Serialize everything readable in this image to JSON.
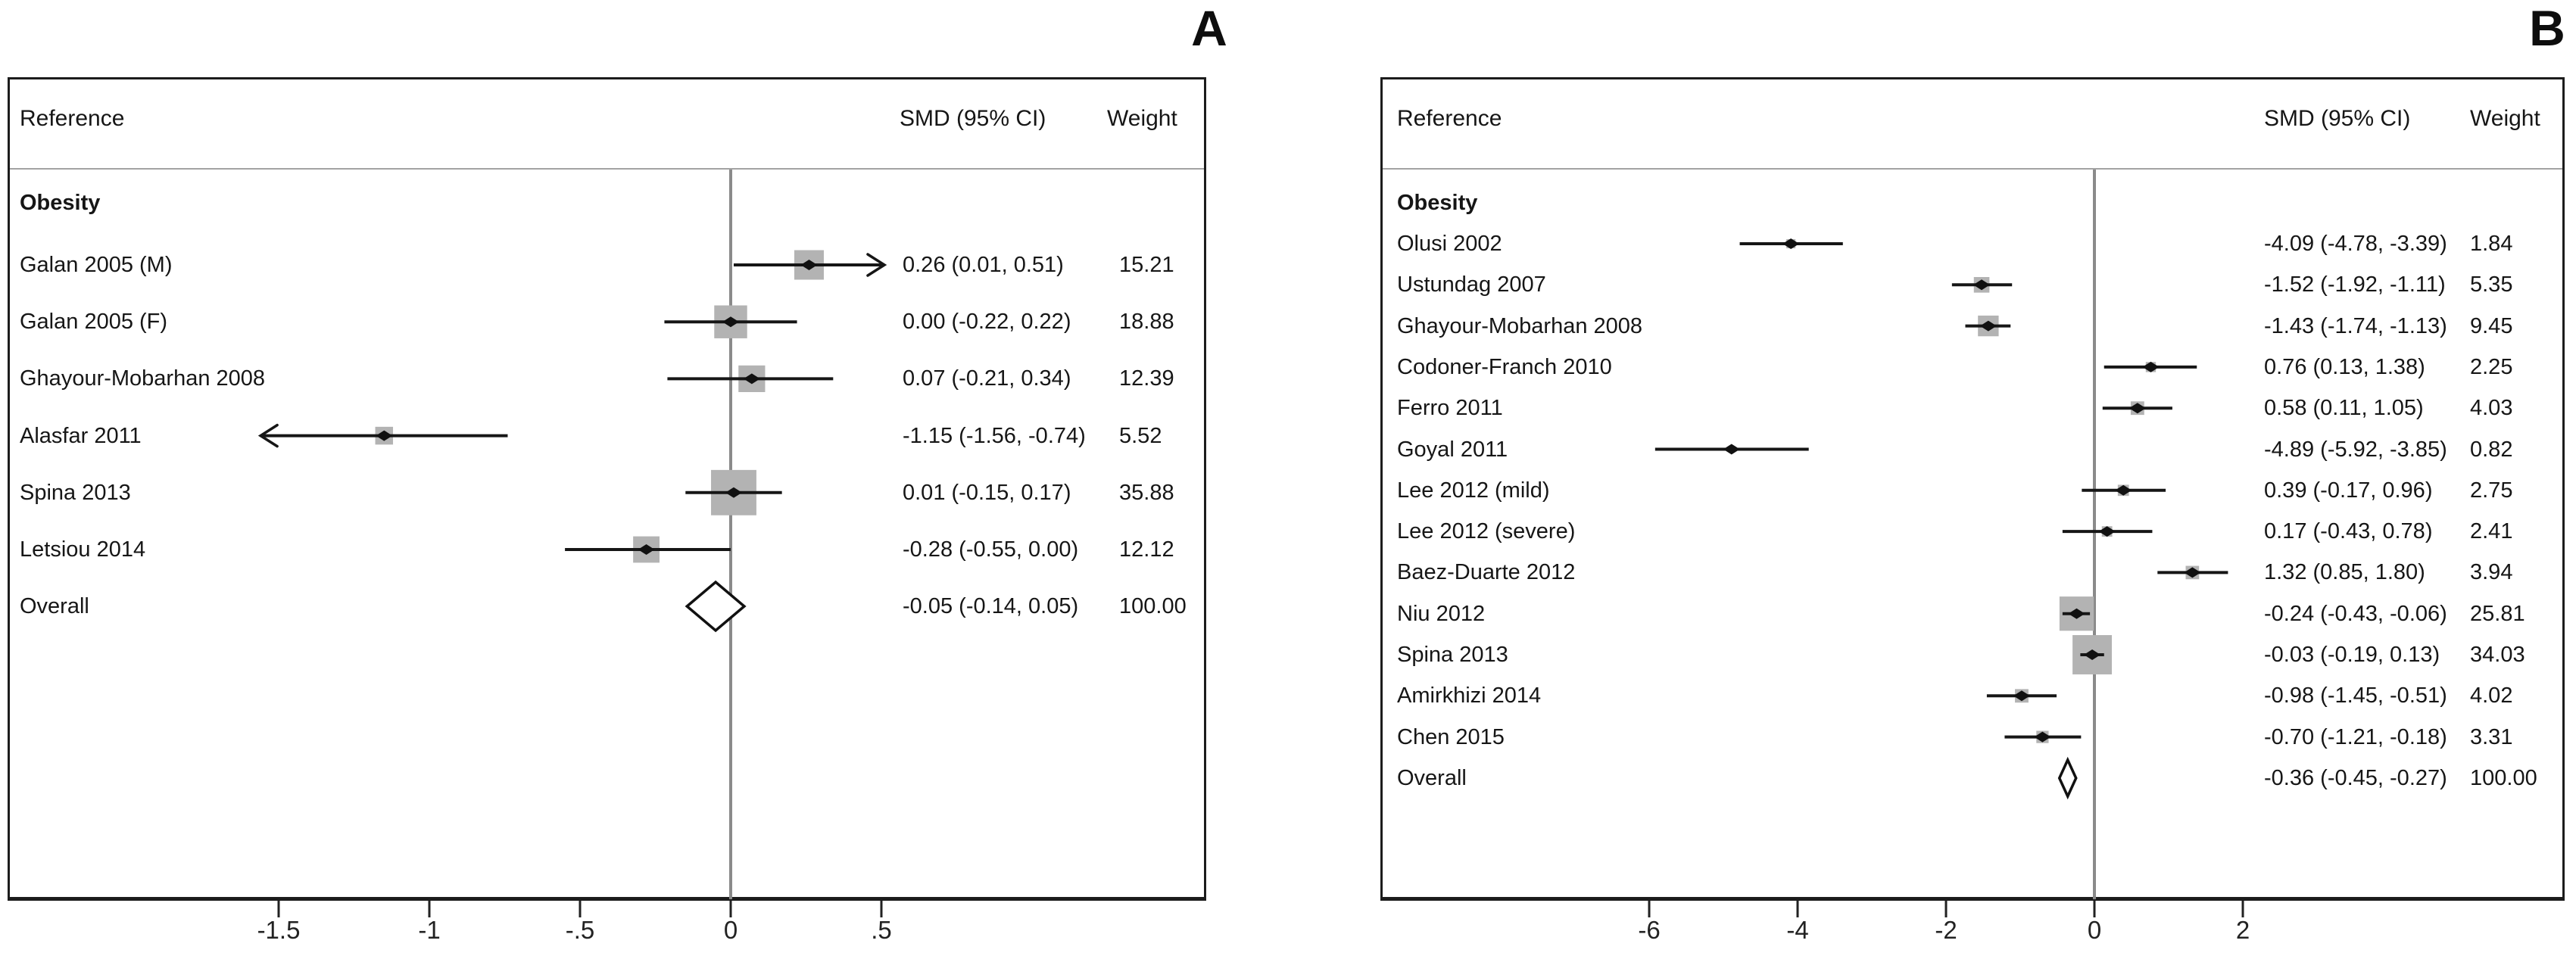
{
  "colors": {
    "square": "#b3b3b3",
    "ci_line": "#161616",
    "zero_line": "#8a8a8a",
    "marker": "#111111",
    "diamond_fill": "#ffffff",
    "diamond_stroke": "#111111",
    "frame": "#1c1c1c"
  },
  "chart_data": [
    {
      "type": "forest",
      "panel_label": "A",
      "columns": {
        "reference": "Reference",
        "smd": "SMD (95% CI)",
        "weight": "Weight"
      },
      "group": "Obesity",
      "x_ticks": [
        {
          "value": -1.5,
          "label": "-1.5"
        },
        {
          "value": -1.0,
          "label": "-1"
        },
        {
          "value": -0.5,
          "label": "-.5"
        },
        {
          "value": 0.0,
          "label": "0"
        },
        {
          "value": 0.5,
          "label": ".5"
        }
      ],
      "studies": [
        {
          "reference": "Galan 2005 (M)",
          "smd": 0.26,
          "ci_low": 0.01,
          "ci_high": 0.51,
          "smd_ci_text": "0.26 (0.01, 0.51)",
          "weight": 15.21,
          "weight_text": "15.21",
          "arrow": "right"
        },
        {
          "reference": "Galan 2005 (F)",
          "smd": 0.0,
          "ci_low": -0.22,
          "ci_high": 0.22,
          "smd_ci_text": "0.00 (-0.22, 0.22)",
          "weight": 18.88,
          "weight_text": "18.88"
        },
        {
          "reference": "Ghayour-Mobarhan 2008",
          "smd": 0.07,
          "ci_low": -0.21,
          "ci_high": 0.34,
          "smd_ci_text": "0.07 (-0.21, 0.34)",
          "weight": 12.39,
          "weight_text": "12.39"
        },
        {
          "reference": "Alasfar 2011",
          "smd": -1.15,
          "ci_low": -1.56,
          "ci_high": -0.74,
          "smd_ci_text": "-1.15 (-1.56, -0.74)",
          "weight": 5.52,
          "weight_text": "5.52",
          "arrow": "left"
        },
        {
          "reference": "Spina 2013",
          "smd": 0.01,
          "ci_low": -0.15,
          "ci_high": 0.17,
          "smd_ci_text": "0.01 (-0.15, 0.17)",
          "weight": 35.88,
          "weight_text": "35.88"
        },
        {
          "reference": "Letsiou 2014",
          "smd": -0.28,
          "ci_low": -0.55,
          "ci_high": 0.0,
          "smd_ci_text": "-0.28 (-0.55, 0.00)",
          "weight": 12.12,
          "weight_text": "12.12"
        }
      ],
      "overall": {
        "reference": "Overall",
        "smd": -0.05,
        "ci_low": -0.14,
        "ci_high": 0.05,
        "smd_ci_text": "-0.05 (-0.14, 0.05)",
        "weight": 100.0,
        "weight_text": "100.00"
      }
    },
    {
      "type": "forest",
      "panel_label": "B",
      "columns": {
        "reference": "Reference",
        "smd": "SMD (95% CI)",
        "weight": "Weight"
      },
      "group": "Obesity",
      "x_ticks": [
        {
          "value": -6,
          "label": "-6"
        },
        {
          "value": -4,
          "label": "-4"
        },
        {
          "value": -2,
          "label": "-2"
        },
        {
          "value": 0,
          "label": "0"
        },
        {
          "value": 2,
          "label": "2"
        }
      ],
      "studies": [
        {
          "reference": "Olusi 2002",
          "smd": -4.09,
          "ci_low": -4.78,
          "ci_high": -3.39,
          "smd_ci_text": "-4.09 (-4.78, -3.39)",
          "weight": 1.84,
          "weight_text": "1.84"
        },
        {
          "reference": "Ustundag 2007",
          "smd": -1.52,
          "ci_low": -1.92,
          "ci_high": -1.11,
          "smd_ci_text": "-1.52 (-1.92, -1.11)",
          "weight": 5.35,
          "weight_text": "5.35"
        },
        {
          "reference": "Ghayour-Mobarhan 2008",
          "smd": -1.43,
          "ci_low": -1.74,
          "ci_high": -1.13,
          "smd_ci_text": "-1.43 (-1.74, -1.13)",
          "weight": 9.45,
          "weight_text": "9.45"
        },
        {
          "reference": "Codoner-Franch 2010",
          "smd": 0.76,
          "ci_low": 0.13,
          "ci_high": 1.38,
          "smd_ci_text": "0.76 (0.13, 1.38)",
          "weight": 2.25,
          "weight_text": "2.25"
        },
        {
          "reference": "Ferro 2011",
          "smd": 0.58,
          "ci_low": 0.11,
          "ci_high": 1.05,
          "smd_ci_text": "0.58 (0.11, 1.05)",
          "weight": 4.03,
          "weight_text": "4.03"
        },
        {
          "reference": "Goyal 2011",
          "smd": -4.89,
          "ci_low": -5.92,
          "ci_high": -3.85,
          "smd_ci_text": "-4.89 (-5.92, -3.85)",
          "weight": 0.82,
          "weight_text": "0.82"
        },
        {
          "reference": "Lee 2012 (mild)",
          "smd": 0.39,
          "ci_low": -0.17,
          "ci_high": 0.96,
          "smd_ci_text": "0.39 (-0.17, 0.96)",
          "weight": 2.75,
          "weight_text": "2.75"
        },
        {
          "reference": "Lee 2012 (severe)",
          "smd": 0.17,
          "ci_low": -0.43,
          "ci_high": 0.78,
          "smd_ci_text": "0.17 (-0.43, 0.78)",
          "weight": 2.41,
          "weight_text": "2.41"
        },
        {
          "reference": "Baez-Duarte 2012",
          "smd": 1.32,
          "ci_low": 0.85,
          "ci_high": 1.8,
          "smd_ci_text": "1.32 (0.85, 1.80)",
          "weight": 3.94,
          "weight_text": "3.94"
        },
        {
          "reference": "Niu 2012",
          "smd": -0.24,
          "ci_low": -0.43,
          "ci_high": -0.06,
          "smd_ci_text": "-0.24 (-0.43, -0.06)",
          "weight": 25.81,
          "weight_text": "25.81"
        },
        {
          "reference": "Spina 2013",
          "smd": -0.03,
          "ci_low": -0.19,
          "ci_high": 0.13,
          "smd_ci_text": "-0.03 (-0.19, 0.13)",
          "weight": 34.03,
          "weight_text": "34.03"
        },
        {
          "reference": "Amirkhizi 2014",
          "smd": -0.98,
          "ci_low": -1.45,
          "ci_high": -0.51,
          "smd_ci_text": "-0.98 (-1.45, -0.51)",
          "weight": 4.02,
          "weight_text": "4.02"
        },
        {
          "reference": "Chen 2015",
          "smd": -0.7,
          "ci_low": -1.21,
          "ci_high": -0.18,
          "smd_ci_text": "-0.70 (-1.21, -0.18)",
          "weight": 3.31,
          "weight_text": "3.31"
        }
      ],
      "overall": {
        "reference": "Overall",
        "smd": -0.36,
        "ci_low": -0.45,
        "ci_high": -0.27,
        "smd_ci_text": "-0.36 (-0.45, -0.27)",
        "weight": 100.0,
        "weight_text": "100.00"
      }
    }
  ]
}
